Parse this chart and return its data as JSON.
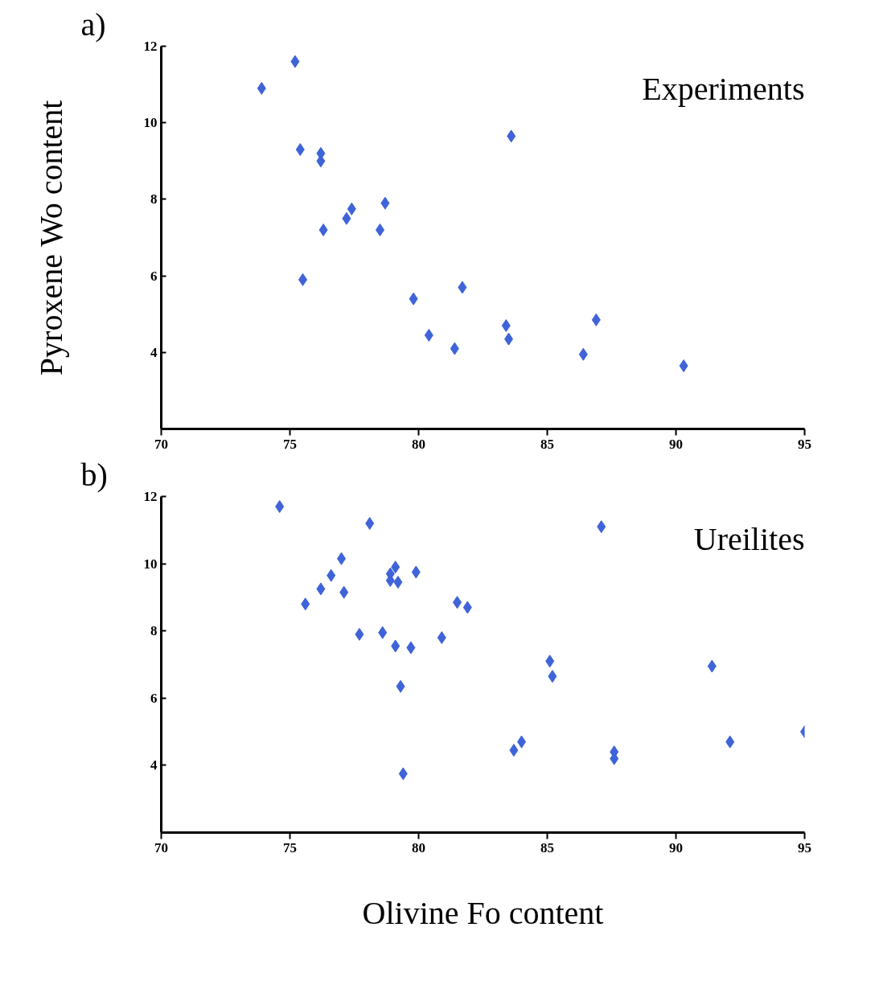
{
  "chart_data": [
    {
      "type": "scatter",
      "ylabel": "Pyroxene Wo content",
      "annotations": [
        "a)",
        "Experiments"
      ],
      "marker": "diamond",
      "grid": false,
      "xlim": [
        70,
        95
      ],
      "ylim": [
        2,
        12
      ],
      "xticks": [
        70,
        75,
        80,
        85,
        90,
        95
      ],
      "yticks": [
        4,
        6,
        8,
        10,
        12
      ],
      "series": [
        {
          "color": "#3f63d8",
          "x": [
            73.9,
            75.2,
            75.4,
            76.2,
            76.2,
            76.3,
            75.5,
            77.4,
            77.2,
            78.5,
            78.7,
            83.6,
            79.8,
            81.7,
            80.4,
            81.4,
            83.4,
            83.5,
            86.9,
            86.4,
            90.3
          ],
          "values": [
            10.9,
            11.6,
            9.3,
            9.2,
            9.0,
            7.2,
            5.9,
            7.75,
            7.5,
            7.2,
            7.9,
            9.65,
            5.4,
            5.7,
            4.45,
            4.1,
            4.7,
            4.35,
            4.85,
            3.95,
            3.65
          ]
        }
      ]
    },
    {
      "type": "scatter",
      "xlabel": "Olivine Fo content",
      "annotations": [
        "b)",
        "Ureilites"
      ],
      "marker": "diamond",
      "grid": false,
      "xlim": [
        70,
        95
      ],
      "ylim": [
        2,
        12
      ],
      "xticks": [
        70,
        75,
        80,
        85,
        90,
        95
      ],
      "yticks": [
        4,
        6,
        8,
        10,
        12
      ],
      "series": [
        {
          "color": "#3f63d8",
          "x": [
            74.6,
            78.1,
            87.1,
            75.6,
            76.2,
            76.6,
            77.0,
            77.1,
            79.1,
            78.9,
            78.9,
            79.2,
            79.9,
            81.5,
            81.9,
            77.7,
            78.6,
            79.1,
            79.7,
            80.9,
            79.3,
            79.4,
            85.1,
            85.2,
            83.7,
            84.0,
            87.6,
            87.6,
            91.4,
            92.1,
            95.0
          ],
          "values": [
            11.7,
            11.2,
            11.1,
            8.8,
            9.25,
            9.65,
            10.15,
            9.15,
            9.9,
            9.7,
            9.5,
            9.45,
            9.75,
            8.85,
            8.7,
            7.9,
            7.95,
            7.55,
            7.5,
            7.8,
            6.35,
            3.75,
            7.1,
            6.65,
            4.45,
            4.7,
            4.4,
            4.2,
            6.95,
            4.7,
            5.0
          ]
        }
      ]
    }
  ]
}
